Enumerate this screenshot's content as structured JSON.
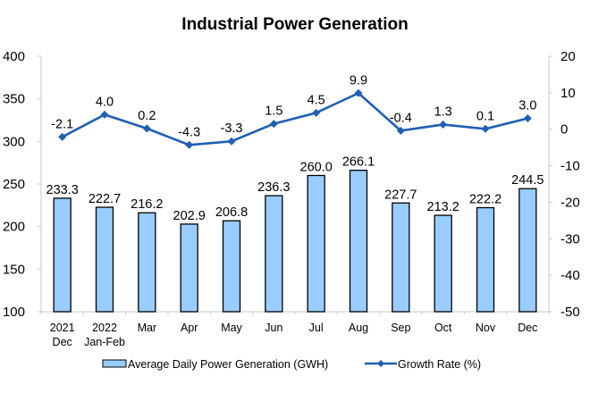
{
  "chart_data": {
    "type": "bar+line",
    "title": "Industrial Power Generation",
    "categories": [
      [
        "2021",
        "Dec"
      ],
      [
        "2022",
        "Jan-Feb"
      ],
      [
        "Mar"
      ],
      [
        "Apr"
      ],
      [
        "May"
      ],
      [
        "Jun"
      ],
      [
        "Jul"
      ],
      [
        "Aug"
      ],
      [
        "Sep"
      ],
      [
        "Oct"
      ],
      [
        "Nov"
      ],
      [
        "Dec"
      ]
    ],
    "series": [
      {
        "name": "Average Daily Power Generation (GWH)",
        "type": "bar",
        "axis": "left",
        "color": "#99ccff",
        "edge_color": "#000000",
        "values": [
          233.3,
          222.7,
          216.2,
          202.9,
          206.8,
          236.3,
          260.0,
          266.1,
          227.7,
          213.2,
          222.2,
          244.5
        ],
        "labels": [
          "233.3",
          "222.7",
          "216.2",
          "202.9",
          "206.8",
          "236.3",
          "260.0",
          "266.1",
          "227.7",
          "213.2",
          "222.2",
          "244.5"
        ]
      },
      {
        "name": "Growth Rate (%)",
        "type": "line",
        "axis": "right",
        "color": "#1f5fb4",
        "marker": "diamond",
        "values": [
          -2.1,
          4.0,
          0.2,
          -4.3,
          -3.3,
          1.5,
          4.5,
          9.9,
          -0.4,
          1.3,
          0.1,
          3.0
        ],
        "labels": [
          "-2.1",
          "4.0",
          "0.2",
          "-4.3",
          "-3.3",
          "1.5",
          "4.5",
          "9.9",
          "-0.4",
          "1.3",
          "0.1",
          "3.0"
        ]
      }
    ],
    "y_left": {
      "range": [
        100,
        400
      ],
      "ticks": [
        "100",
        "150",
        "200",
        "250",
        "300",
        "350",
        "400"
      ]
    },
    "y_right": {
      "range": [
        -50,
        20
      ],
      "ticks": [
        "-50",
        "-40",
        "-30",
        "-20",
        "-10",
        "0",
        "10",
        "20"
      ]
    },
    "xlabel": "",
    "ylabel": "",
    "grid": false,
    "legend_position": "bottom",
    "axis_color": "#c8c8c8"
  }
}
